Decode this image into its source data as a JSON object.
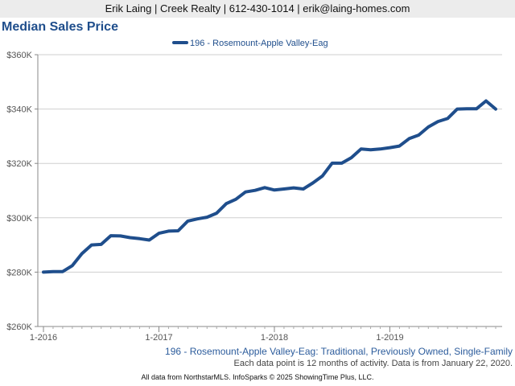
{
  "header": {
    "contact": "Erik Laing | Creek Realty | 612-430-1014 | erik@laing-homes.com"
  },
  "chart_data": {
    "type": "line",
    "title": "Median Sales Price",
    "xlabel": "",
    "ylabel": "",
    "ylim": [
      260000,
      360000
    ],
    "y_ticks": [
      260000,
      280000,
      300000,
      320000,
      340000,
      360000
    ],
    "y_tick_labels": [
      "$260K",
      "$280K",
      "$300K",
      "$320K",
      "$340K",
      "$360K"
    ],
    "x_ticks": [
      0,
      12,
      24,
      36
    ],
    "x_tick_labels": [
      "1-2016",
      "1-2017",
      "1-2018",
      "1-2019"
    ],
    "x_range": [
      0,
      47
    ],
    "grid": true,
    "legend_position": "top",
    "series": [
      {
        "name": "196 - Rosemount-Apple Valley-Eag",
        "color": "#1f4e8c",
        "x": [
          0,
          1,
          2,
          3,
          4,
          5,
          6,
          7,
          8,
          9,
          10,
          11,
          12,
          13,
          14,
          15,
          16,
          17,
          18,
          19,
          20,
          21,
          22,
          23,
          24,
          25,
          26,
          27,
          28,
          29,
          30,
          31,
          32,
          33,
          34,
          35,
          36,
          37,
          38,
          39,
          40,
          41,
          42,
          43,
          44,
          45,
          46,
          47
        ],
        "values": [
          280000,
          280200,
          280200,
          282400,
          286800,
          290000,
          290200,
          293400,
          293300,
          292700,
          292300,
          291800,
          294300,
          295100,
          295200,
          298800,
          299600,
          300200,
          301700,
          305200,
          306800,
          309500,
          310100,
          311100,
          310200,
          310600,
          311000,
          310600,
          312800,
          315400,
          320100,
          320100,
          322100,
          325300,
          325000,
          325300,
          325800,
          326400,
          329100,
          330400,
          333400,
          335400,
          336500,
          340000,
          340100,
          340100,
          343000,
          340000
        ]
      }
    ],
    "subtitle": "196 - Rosemount-Apple Valley-Eag: Traditional, Previously Owned, Single-Family",
    "note": "Each data point is 12 months of activity. Data is from January 22, 2020.",
    "footer": "All data from NorthstarMLS. InfoSparks © 2025 ShowingTime Plus, LLC."
  }
}
